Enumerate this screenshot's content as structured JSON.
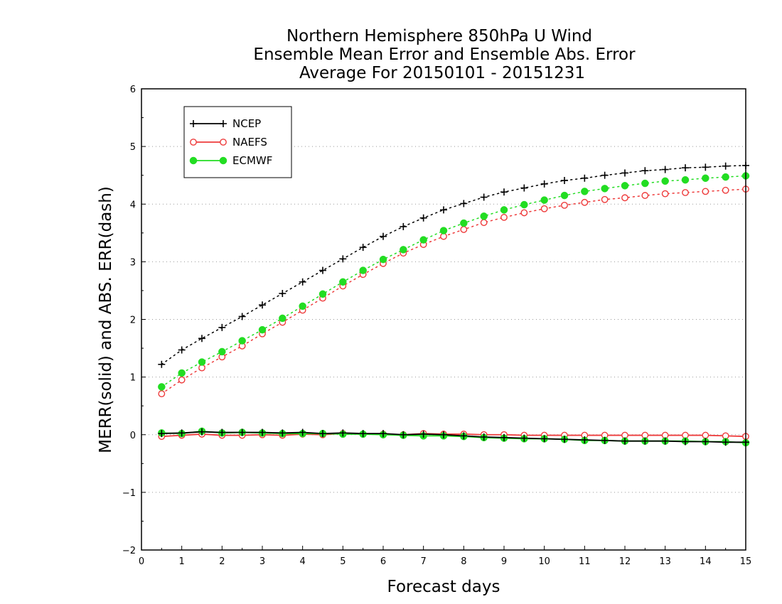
{
  "chart_data": {
    "type": "line",
    "title_lines": [
      "Northern Hemisphere 850hPa U Wind",
      "Ensemble Mean Error and Ensemble Abs. Error",
      "Average For 20150101 - 20151231"
    ],
    "xlabel": "Forecast days",
    "ylabel": "MERR(solid) and ABS. ERR(dash)",
    "xlim": [
      0,
      15
    ],
    "ylim": [
      -2,
      6
    ],
    "xticks": [
      "0",
      "1",
      "2",
      "3",
      "4",
      "5",
      "6",
      "7",
      "8",
      "9",
      "10",
      "11",
      "12",
      "13",
      "14",
      "15"
    ],
    "yticks": [
      "−2",
      "−1",
      "0",
      "1",
      "2",
      "3",
      "4",
      "5",
      "6"
    ],
    "grid": "horizontal dotted",
    "legend_position": "top-left",
    "x": [
      0.5,
      1,
      1.5,
      2,
      2.5,
      3,
      3.5,
      4,
      4.5,
      5,
      5.5,
      6,
      6.5,
      7,
      7.5,
      8,
      8.5,
      9,
      9.5,
      10,
      10.5,
      11,
      11.5,
      12,
      12.5,
      13,
      13.5,
      14,
      14.5,
      15
    ],
    "series": [
      {
        "name": "NCEP",
        "color": "#000000",
        "marker": "plus",
        "abs_err": [
          1.22,
          1.47,
          1.67,
          1.86,
          2.05,
          2.25,
          2.45,
          2.65,
          2.85,
          3.05,
          3.25,
          3.44,
          3.61,
          3.76,
          3.9,
          4.01,
          4.12,
          4.21,
          4.28,
          4.35,
          4.41,
          4.45,
          4.5,
          4.54,
          4.58,
          4.6,
          4.63,
          4.64,
          4.66,
          4.67
        ],
        "mean_err": [
          0.02,
          0.03,
          0.05,
          0.04,
          0.04,
          0.04,
          0.03,
          0.04,
          0.02,
          0.03,
          0.02,
          0.02,
          0.0,
          0.01,
          0.0,
          -0.02,
          -0.04,
          -0.05,
          -0.06,
          -0.07,
          -0.08,
          -0.09,
          -0.1,
          -0.11,
          -0.11,
          -0.11,
          -0.12,
          -0.12,
          -0.13,
          -0.13
        ]
      },
      {
        "name": "NAEFS",
        "color": "#ee3b3b",
        "marker": "open-circle",
        "abs_err": [
          0.71,
          0.95,
          1.16,
          1.35,
          1.54,
          1.75,
          1.95,
          2.16,
          2.37,
          2.58,
          2.78,
          2.97,
          3.15,
          3.3,
          3.44,
          3.56,
          3.68,
          3.77,
          3.85,
          3.92,
          3.98,
          4.03,
          4.08,
          4.11,
          4.15,
          4.18,
          4.2,
          4.22,
          4.24,
          4.26
        ],
        "mean_err": [
          -0.03,
          -0.01,
          0.01,
          -0.01,
          -0.01,
          0.0,
          -0.01,
          0.01,
          0.0,
          0.02,
          0.01,
          0.01,
          0.0,
          0.02,
          0.01,
          0.01,
          0.0,
          0.0,
          -0.01,
          -0.01,
          -0.01,
          -0.01,
          -0.01,
          -0.01,
          -0.01,
          -0.01,
          -0.01,
          -0.01,
          -0.02,
          -0.03
        ]
      },
      {
        "name": "ECMWF",
        "color": "#22dd22",
        "marker": "filled-circle",
        "abs_err": [
          0.83,
          1.07,
          1.26,
          1.44,
          1.63,
          1.82,
          2.02,
          2.23,
          2.44,
          2.65,
          2.85,
          3.04,
          3.21,
          3.38,
          3.54,
          3.67,
          3.79,
          3.9,
          3.99,
          4.07,
          4.15,
          4.22,
          4.27,
          4.32,
          4.36,
          4.4,
          4.42,
          4.45,
          4.47,
          4.49
        ],
        "mean_err": [
          0.03,
          0.02,
          0.06,
          0.03,
          0.04,
          0.03,
          0.02,
          0.02,
          0.02,
          0.01,
          0.01,
          0.0,
          -0.01,
          -0.02,
          -0.02,
          -0.03,
          -0.05,
          -0.06,
          -0.07,
          -0.07,
          -0.08,
          -0.1,
          -0.1,
          -0.11,
          -0.11,
          -0.11,
          -0.11,
          -0.12,
          -0.12,
          -0.14
        ]
      }
    ]
  }
}
